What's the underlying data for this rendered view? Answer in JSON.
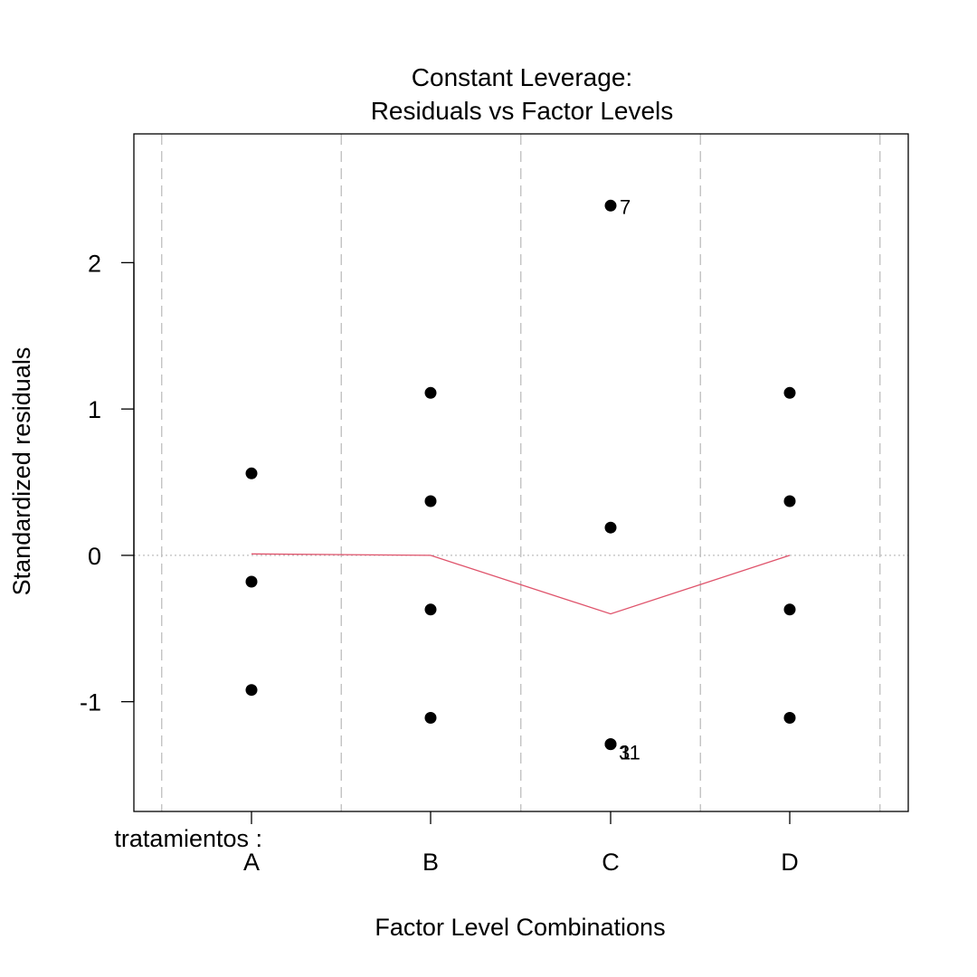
{
  "chart_data": {
    "type": "scatter",
    "title": "Constant Leverage:",
    "subtitle": "Residuals vs Factor Levels",
    "xlabel": "Factor Level Combinations",
    "ylabel": "Standardized residuals",
    "factor_label": "tratamientos :",
    "categories": [
      "A",
      "B",
      "C",
      "D"
    ],
    "y_ticks": [
      "-1",
      "0",
      "1",
      "2"
    ],
    "ylim": [
      -1.75,
      2.88
    ],
    "grid": "dashed vertical lines between and around factor levels",
    "reference_line_y": 0,
    "points": [
      {
        "category": "A",
        "y": 0.56
      },
      {
        "category": "A",
        "y": -0.18
      },
      {
        "category": "A",
        "y": -0.92
      },
      {
        "category": "B",
        "y": 1.11
      },
      {
        "category": "B",
        "y": 0.37
      },
      {
        "category": "B",
        "y": -0.37
      },
      {
        "category": "B",
        "y": -1.11
      },
      {
        "category": "C",
        "y": 2.39,
        "label": "7"
      },
      {
        "category": "C",
        "y": 0.19
      },
      {
        "category": "C",
        "y": -1.29,
        "label": "3"
      },
      {
        "category": "C",
        "y": -1.29,
        "label": "11"
      },
      {
        "category": "D",
        "y": 1.11
      },
      {
        "category": "D",
        "y": 0.37
      },
      {
        "category": "D",
        "y": -0.37
      },
      {
        "category": "D",
        "y": -1.11
      }
    ],
    "smoother": [
      {
        "category": "A",
        "y": 0.01
      },
      {
        "category": "B",
        "y": 0.0
      },
      {
        "category": "C",
        "y": -0.4
      },
      {
        "category": "D",
        "y": 0.0
      }
    ],
    "colors": {
      "points": "#000000",
      "smoother": "#DF536B",
      "reference": "#BEBEBE",
      "grid": "#BEBEBE"
    }
  }
}
